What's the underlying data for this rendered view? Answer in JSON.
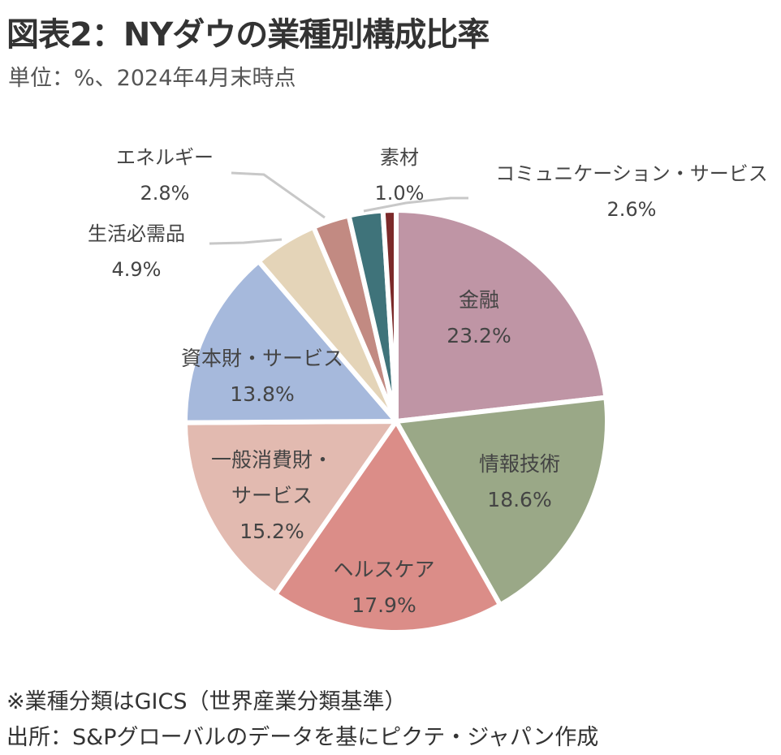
{
  "title": "図表2：NYダウの業種別構成比率",
  "subtitle": "単位：%、2024年4月末時点",
  "notes": [
    "※業種分類はGICS（世界産業分類基準）",
    "出所：S&Pグローバルのデータを基にピクテ・ジャパン作成"
  ],
  "chart_data": {
    "type": "pie",
    "title": "図表2：NYダウの業種別構成比率",
    "unit": "%",
    "slices": [
      {
        "label": "金融",
        "value": 23.2,
        "value_label": "23.2%",
        "color": "#bf95a5"
      },
      {
        "label": "情報技術",
        "value": 18.6,
        "value_label": "18.6%",
        "color": "#9aa887"
      },
      {
        "label": "ヘルスケア",
        "value": 17.9,
        "value_label": "17.9%",
        "color": "#db8d88"
      },
      {
        "label": "一般消費財・サービス",
        "value": 15.2,
        "value_label": "15.2%",
        "color": "#e2bab0"
      },
      {
        "label": "資本財・サービス",
        "value": 13.8,
        "value_label": "13.8%",
        "color": "#a6b9dc"
      },
      {
        "label": "生活必需品",
        "value": 4.9,
        "value_label": "4.9%",
        "color": "#e4d4b8"
      },
      {
        "label": "エネルギー",
        "value": 2.8,
        "value_label": "2.8%",
        "color": "#c28a82"
      },
      {
        "label": "コミュニケーション・サービス",
        "value": 2.6,
        "value_label": "2.6%",
        "color": "#3f737a"
      },
      {
        "label": "素材",
        "value": 1.0,
        "value_label": "1.0%",
        "color": "#7c2a2a"
      }
    ],
    "start": "12 o'clock, clockwise",
    "legend": "none (direct labels)"
  }
}
